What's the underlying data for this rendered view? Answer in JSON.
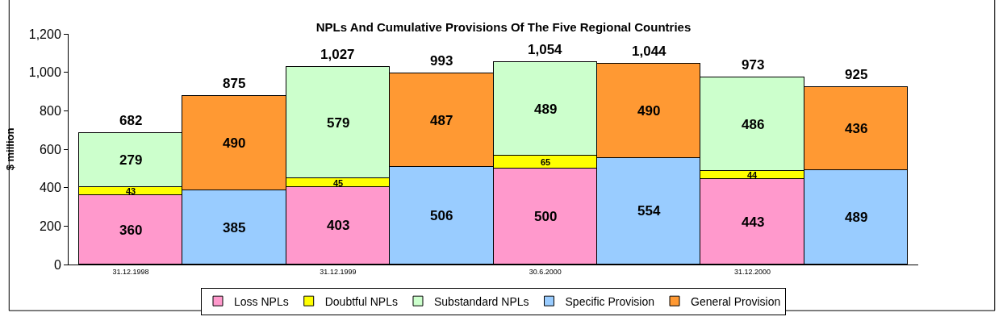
{
  "chart_data": {
    "type": "bar",
    "title": "NPLs And Cumulative Provisions Of The Five Regional Countries",
    "ylabel": "$ million",
    "categories": [
      "31.12.1998",
      null,
      "31.12.1999",
      null,
      "30.6.2000",
      null,
      "31.12.2000",
      null
    ],
    "series": [
      {
        "name": "Loss NPLs",
        "color": "#ff99cc",
        "values": [
          360,
          null,
          403,
          null,
          500,
          null,
          443,
          null
        ]
      },
      {
        "name": "Doubtful NPLs",
        "color": "#ffff00",
        "values": [
          43,
          null,
          45,
          null,
          65,
          null,
          44,
          null
        ]
      },
      {
        "name": "Substandard NPLs",
        "color": "#ccffcc",
        "values": [
          279,
          null,
          579,
          null,
          489,
          null,
          486,
          null
        ]
      },
      {
        "name": "Specific Provision",
        "color": "#99ccff",
        "values": [
          null,
          385,
          null,
          506,
          null,
          554,
          null,
          489
        ]
      },
      {
        "name": "General Provision",
        "color": "#ff9933",
        "values": [
          null,
          490,
          null,
          487,
          null,
          490,
          null,
          436
        ]
      }
    ],
    "stacked": true,
    "data_labels": true,
    "totals": [
      "682",
      "875",
      "1,027",
      "993",
      "1,054",
      "1,044",
      "973",
      "925"
    ],
    "ylim": [
      0,
      1200
    ],
    "yticks": [
      0,
      200,
      400,
      600,
      800,
      {
        "value": 1000,
        "label": "1,000"
      },
      {
        "value": 1200,
        "label": "1,200"
      }
    ],
    "legend": "bottom"
  }
}
